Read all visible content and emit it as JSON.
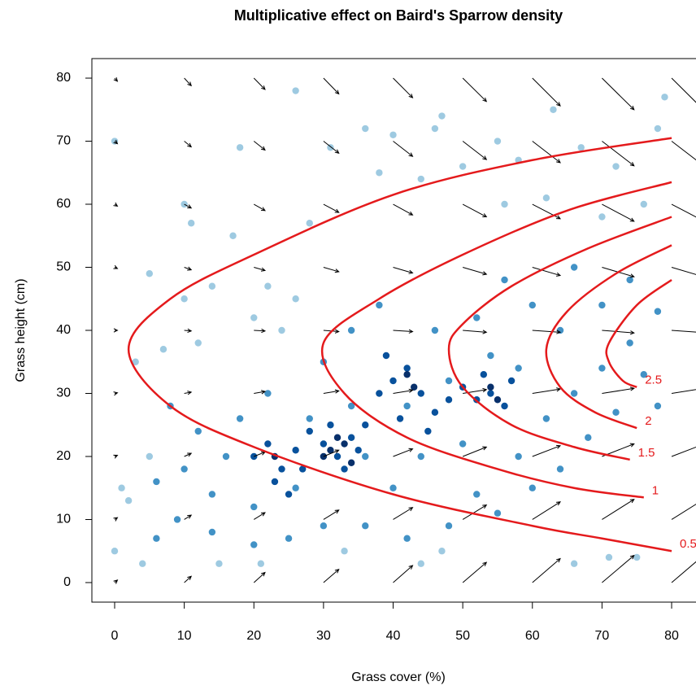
{
  "chart_data": {
    "type": "scatter",
    "title": "Multiplicative effect on Baird's Sparrow density",
    "x_label": "Grass cover (%)",
    "y_label": "Grass height (cm)",
    "xlim": [
      -3.27,
      83.5
    ],
    "ylim": [
      -3.1,
      83.1
    ],
    "xticks": [
      0,
      10,
      20,
      30,
      40,
      50,
      60,
      70,
      80
    ],
    "yticks": [
      0,
      10,
      20,
      30,
      40,
      50,
      60,
      70,
      80
    ],
    "series": [
      {
        "color": "#9ecae1",
        "x": [
          0,
          0,
          26,
          79,
          14,
          10,
          11,
          18,
          31,
          36,
          40,
          47,
          46,
          55,
          63,
          67,
          78,
          17,
          22,
          28,
          3,
          5,
          10,
          7,
          12,
          2,
          1,
          4,
          15,
          21,
          33,
          44,
          47,
          66,
          71,
          75,
          38,
          44,
          50,
          56,
          62,
          70,
          76,
          24,
          20,
          26,
          5,
          58,
          72
        ],
        "values": [
          70,
          5,
          78,
          77,
          47,
          60,
          57,
          69,
          69,
          72,
          71,
          74,
          72,
          70,
          75,
          69,
          72,
          55,
          47,
          57,
          35,
          49,
          45,
          37,
          38,
          13,
          15,
          3,
          3,
          3,
          5,
          3,
          5,
          3,
          4,
          4,
          65,
          64,
          66,
          60,
          61,
          58,
          60,
          40,
          42,
          45,
          20,
          67,
          66
        ]
      },
      {
        "color": "#4292c6",
        "x": [
          8,
          12,
          6,
          9,
          14,
          20,
          25,
          30,
          36,
          42,
          48,
          52,
          55,
          60,
          64,
          68,
          72,
          76,
          78,
          74,
          70,
          66,
          60,
          56,
          52,
          46,
          38,
          34,
          30,
          22,
          18,
          16,
          10,
          6,
          26,
          40,
          44,
          50,
          58,
          62,
          66,
          70,
          74,
          78,
          64,
          58,
          54,
          34,
          28,
          14,
          20,
          36,
          42,
          48
        ],
        "values": [
          28,
          24,
          16,
          10,
          8,
          6,
          7,
          9,
          9,
          7,
          9,
          14,
          11,
          15,
          18,
          23,
          27,
          33,
          43,
          48,
          44,
          50,
          44,
          48,
          42,
          40,
          44,
          40,
          35,
          30,
          26,
          20,
          18,
          7,
          15,
          15,
          20,
          22,
          20,
          26,
          30,
          34,
          38,
          28,
          40,
          34,
          36,
          28,
          26,
          14,
          12,
          20,
          28,
          32
        ]
      },
      {
        "color": "#08519c",
        "x": [
          20,
          22,
          24,
          26,
          28,
          30,
          32,
          34,
          36,
          38,
          40,
          42,
          44,
          46,
          48,
          50,
          52,
          54,
          56,
          33,
          35,
          31,
          27,
          25,
          23,
          39,
          41,
          45,
          53,
          57
        ],
        "values": [
          20,
          22,
          18,
          21,
          24,
          22,
          20,
          23,
          25,
          30,
          32,
          34,
          30,
          27,
          29,
          31,
          29,
          30,
          28,
          18,
          21,
          25,
          18,
          14,
          16,
          36,
          26,
          24,
          33,
          32
        ]
      },
      {
        "color": "#08306b",
        "x": [
          31,
          32,
          33,
          34,
          30,
          42,
          43,
          54,
          55,
          23
        ],
        "values": [
          21,
          23,
          22,
          19,
          20,
          33,
          31,
          31,
          29,
          20
        ]
      }
    ],
    "vectors": {
      "color": "#000000",
      "x": [
        0,
        10,
        20,
        30,
        40,
        50,
        60,
        70,
        80
      ],
      "y": [
        0,
        10,
        20,
        30,
        40,
        50,
        60,
        70,
        80
      ],
      "u": [
        0.4,
        1.0,
        1.6,
        2.2,
        2.8,
        3.4,
        4.0,
        4.6,
        5.2
      ],
      "v": [
        [
          0.4,
          1.0,
          1.6,
          2.1,
          2.7,
          3.2,
          3.8,
          4.3,
          4.9
        ],
        [
          0.3,
          0.7,
          1.1,
          1.5,
          1.9,
          2.3,
          2.8,
          3.2,
          3.6
        ],
        [
          0.2,
          0.5,
          0.7,
          1.0,
          1.2,
          1.5,
          1.7,
          2.0,
          2.2
        ],
        [
          0.1,
          0.2,
          0.3,
          0.4,
          0.5,
          0.6,
          0.7,
          0.8,
          0.9
        ],
        [
          0,
          -0.1,
          -0.1,
          -0.2,
          -0.2,
          -0.3,
          -0.3,
          -0.4,
          -0.4
        ],
        [
          -0.2,
          -0.4,
          -0.5,
          -0.7,
          -0.9,
          -1.1,
          -1.3,
          -1.5,
          -1.7
        ],
        [
          -0.3,
          -0.6,
          -1.0,
          -1.3,
          -1.7,
          -2.0,
          -2.3,
          -2.7,
          -3.0
        ],
        [
          -0.4,
          -0.9,
          -1.4,
          -1.9,
          -2.4,
          -2.9,
          -3.4,
          -3.9,
          -4.4
        ],
        [
          -0.5,
          -1.2,
          -1.8,
          -2.5,
          -3.1,
          -3.7,
          -4.4,
          -5.0,
          -5.7
        ]
      ]
    },
    "contours": [
      {
        "level": 0.5,
        "color": "#e41a1c",
        "x": [
          80,
          60,
          40,
          20,
          8,
          2,
          8,
          20,
          40,
          60,
          70,
          80
        ],
        "y": [
          70.5,
          67,
          61.5,
          52,
          45,
          37,
          28,
          21.5,
          14,
          9,
          7,
          5
        ]
      },
      {
        "level": 1,
        "color": "#e41a1c",
        "x": [
          80,
          65,
          50,
          38,
          30,
          33,
          42,
          55,
          66,
          76
        ],
        "y": [
          63.5,
          59,
          52,
          45,
          38,
          30,
          23,
          18,
          15,
          13.5
        ]
      },
      {
        "level": 1.5,
        "color": "#e41a1c",
        "x": [
          80,
          68,
          57,
          50,
          48,
          50,
          57,
          66,
          74
        ],
        "y": [
          58,
          53,
          47,
          41,
          37,
          31,
          25,
          21.5,
          19.5
        ]
      },
      {
        "level": 2,
        "color": "#e41a1c",
        "x": [
          80,
          72,
          65,
          62,
          64,
          69,
          75
        ],
        "y": [
          53.5,
          49,
          43,
          37,
          31,
          27,
          24.5
        ]
      },
      {
        "level": 2.5,
        "color": "#e41a1c",
        "x": [
          80,
          75,
          71,
          71,
          73,
          75
        ],
        "y": [
          48,
          44,
          38,
          35,
          32,
          31
        ]
      }
    ]
  }
}
